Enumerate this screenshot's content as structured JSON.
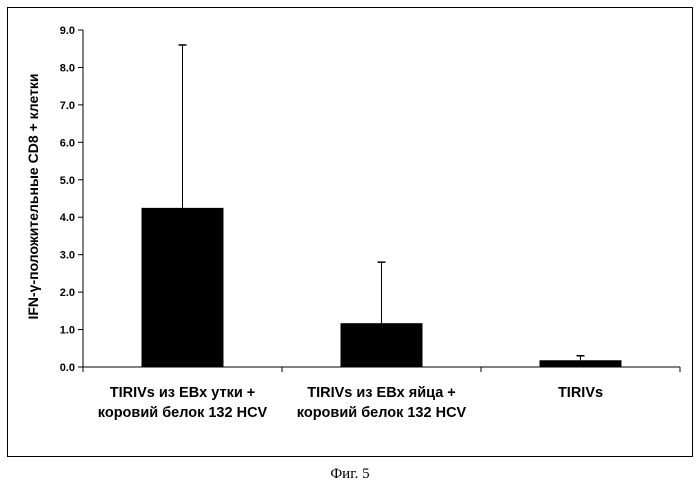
{
  "figure_caption": "Фиг. 5",
  "chart_data": {
    "type": "bar",
    "ylabel": "IFN-γ-положительные CD8 + клетки",
    "xlabel": "",
    "ylim": [
      0,
      9
    ],
    "y_ticks": [
      "0.0",
      "1.0",
      "2.0",
      "3.0",
      "4.0",
      "5.0",
      "6.0",
      "7.0",
      "8.0",
      "9.0"
    ],
    "grid": false,
    "categories": [
      [
        "TIRIVs из EBx утки +",
        "коровий белок 132 HCV"
      ],
      [
        "TIRIVs из EBx яйца +",
        "коровий белок 132 HCV"
      ],
      [
        "TIRIVs"
      ]
    ],
    "values": [
      4.25,
      1.17,
      0.18
    ],
    "error_plus": [
      4.35,
      1.63,
      0.12
    ],
    "bar_color": "#000000"
  }
}
